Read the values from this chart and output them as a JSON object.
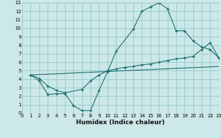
{
  "background_color": "#cce8e8",
  "grid_color": "#99cccc",
  "line_color": "#1a6b6b",
  "marker_color": "#1a6b6b",
  "line1_x": [
    1,
    2,
    3,
    4,
    5,
    6,
    7,
    8,
    9,
    10,
    11,
    13,
    14,
    15,
    16,
    17,
    18,
    19,
    20,
    21,
    22,
    23
  ],
  "line1_y": [
    4.5,
    3.8,
    2.2,
    2.3,
    2.3,
    0.9,
    0.3,
    0.3,
    2.7,
    4.9,
    7.3,
    9.9,
    12.0,
    12.5,
    13.0,
    12.3,
    9.7,
    9.7,
    8.5,
    7.8,
    7.5,
    6.5
  ],
  "line2_x": [
    1,
    2,
    3,
    4,
    5,
    7,
    8,
    9,
    10,
    11,
    12,
    13,
    14,
    15,
    16,
    17,
    18,
    19,
    20,
    21,
    22,
    23
  ],
  "line2_y": [
    4.5,
    4.1,
    3.2,
    2.7,
    2.4,
    2.8,
    3.8,
    4.5,
    5.0,
    5.2,
    5.4,
    5.5,
    5.7,
    5.8,
    6.0,
    6.2,
    6.4,
    6.5,
    6.7,
    7.5,
    8.3,
    6.5
  ],
  "line3_x": [
    1,
    23
  ],
  "line3_y": [
    4.5,
    5.5
  ],
  "xlim": [
    0,
    23
  ],
  "ylim": [
    0,
    13
  ],
  "xticks": [
    0,
    1,
    2,
    3,
    4,
    5,
    6,
    7,
    8,
    9,
    10,
    11,
    12,
    13,
    14,
    15,
    16,
    17,
    18,
    19,
    20,
    21,
    22,
    23
  ],
  "yticks": [
    0,
    1,
    2,
    3,
    4,
    5,
    6,
    7,
    8,
    9,
    10,
    11,
    12,
    13
  ],
  "xlabel": "Humidex (Indice chaleur)",
  "xlabel_fontsize": 6.5,
  "tick_fontsize": 5.0
}
